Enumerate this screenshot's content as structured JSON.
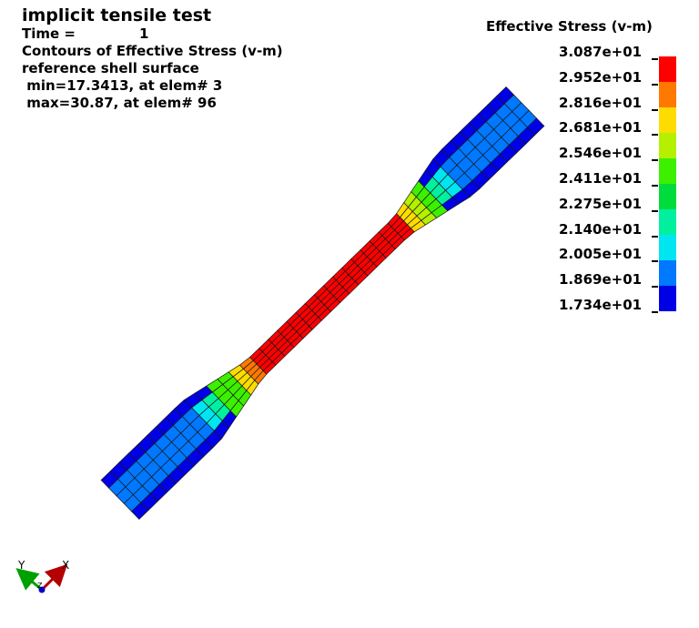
{
  "header": {
    "title": "implicit tensile test",
    "time_label": "Time =",
    "time_value": "1",
    "contour_label": "Contours of Effective Stress (v-m)",
    "surface_label": "reference shell surface",
    "min_label": " min=17.3413, at elem# 3",
    "max_label": " max=30.87, at elem# 96"
  },
  "legend": {
    "title": "Effective Stress (v-m)",
    "labels": [
      "3.087e+01",
      "2.952e+01",
      "2.816e+01",
      "2.681e+01",
      "2.546e+01",
      "2.411e+01",
      "2.275e+01",
      "2.140e+01",
      "2.005e+01",
      "1.869e+01",
      "1.734e+01"
    ],
    "colors": [
      "#ff0000",
      "#ff7800",
      "#ffdc00",
      "#b4f000",
      "#3cf000",
      "#00dc3c",
      "#00f0a0",
      "#00e6f0",
      "#0078ff",
      "#0000e6"
    ]
  },
  "triad": {
    "x_label": "X",
    "y_label": "Y",
    "z_label": "Z",
    "x_color": "#b40000",
    "y_color": "#00a000",
    "z_color": "#0000c8"
  }
}
